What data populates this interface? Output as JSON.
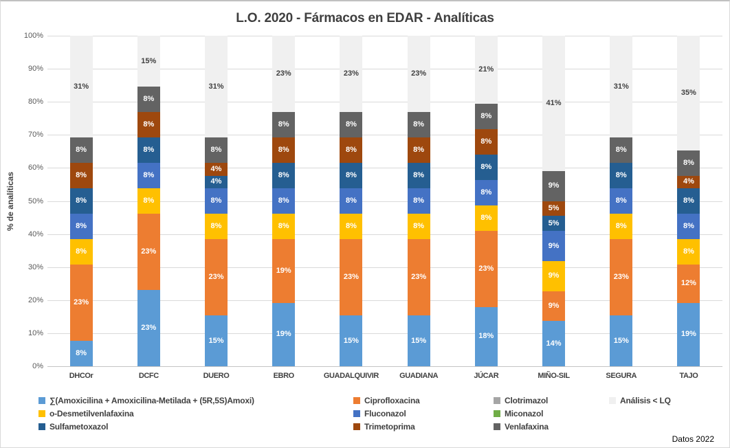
{
  "title": "L.O. 2020 - Fármacos en EDAR - Analíticas",
  "footer": "Datos 2022",
  "y_axis": {
    "label": "% de analíticas",
    "ticks": [
      "100%",
      "90%",
      "80%",
      "70%",
      "60%",
      "50%",
      "40%",
      "30%",
      "20%",
      "10%",
      "0%"
    ]
  },
  "chart_data": {
    "type": "bar",
    "stacked": true,
    "title": "L.O. 2020 - Fármacos en EDAR - Analíticas",
    "xlabel": "",
    "ylabel": "% de analíticas",
    "ylim": [
      0,
      100
    ],
    "grid": true,
    "legend_position": "bottom",
    "categories": [
      "DHCOr",
      "DCFC",
      "DUERO",
      "EBRO",
      "GUADALQUIVIR",
      "GUADIANA",
      "JÚCAR",
      "MIÑO-SIL",
      "SEGURA",
      "TAJO"
    ],
    "series": [
      {
        "name": "∑(Amoxicilina + Amoxicilina-Metilada + (5R,5S)Amoxi)",
        "color": "#5B9BD5",
        "label_color": "#ffffff",
        "values": [
          7.69,
          23.08,
          15.38,
          19.23,
          15.38,
          15.38,
          17.95,
          13.64,
          15.38,
          19.23
        ],
        "data_labels": [
          "8%",
          "23%",
          "15%",
          "19%",
          "15%",
          "15%",
          "18%",
          "14%",
          "15%",
          "19%"
        ]
      },
      {
        "name": "Ciprofloxacina",
        "color": "#ED7D31",
        "label_color": "#ffffff",
        "values": [
          23.08,
          23.08,
          23.08,
          19.23,
          23.08,
          23.08,
          23.08,
          9.09,
          23.08,
          11.54
        ],
        "data_labels": [
          "23%",
          "23%",
          "23%",
          "19%",
          "23%",
          "23%",
          "23%",
          "9%",
          "23%",
          "12%"
        ]
      },
      {
        "name": "Clotrimazol",
        "color": "#A5A5A5",
        "label_color": "#ffffff",
        "values": [
          0,
          0,
          0,
          0,
          0,
          0,
          0,
          0,
          0,
          0
        ],
        "data_labels": [
          "",
          "",
          "",
          "",
          "",
          "",
          "",
          "",
          "",
          ""
        ]
      },
      {
        "name": "o-Desmetilvenlafaxina",
        "color": "#FFC000",
        "label_color": "#ffffff",
        "values": [
          7.69,
          7.69,
          7.69,
          7.69,
          7.69,
          7.69,
          7.69,
          9.09,
          7.69,
          7.69
        ],
        "data_labels": [
          "8%",
          "8%",
          "8%",
          "8%",
          "8%",
          "8%",
          "8%",
          "9%",
          "8%",
          "8%"
        ]
      },
      {
        "name": "Fluconazol",
        "color": "#4472C4",
        "label_color": "#ffffff",
        "values": [
          7.69,
          7.69,
          7.69,
          7.69,
          7.69,
          7.69,
          7.69,
          9.09,
          7.69,
          7.69
        ],
        "data_labels": [
          "8%",
          "8%",
          "8%",
          "8%",
          "8%",
          "8%",
          "8%",
          "9%",
          "8%",
          "8%"
        ]
      },
      {
        "name": "Miconazol",
        "color": "#70AD47",
        "label_color": "#ffffff",
        "values": [
          0,
          0,
          0,
          0,
          0,
          0,
          0,
          0,
          0,
          0
        ],
        "data_labels": [
          "",
          "",
          "",
          "",
          "",
          "",
          "",
          "",
          "",
          ""
        ]
      },
      {
        "name": "Sulfametoxazol",
        "color": "#255E91",
        "label_color": "#ffffff",
        "values": [
          7.69,
          7.69,
          3.85,
          7.69,
          7.69,
          7.69,
          7.69,
          4.55,
          7.69,
          7.69
        ],
        "data_labels": [
          "8%",
          "8%",
          "4%",
          "8%",
          "8%",
          "8%",
          "8%",
          "5%",
          "8%",
          "8%"
        ]
      },
      {
        "name": "Trimetoprima",
        "color": "#9E480E",
        "label_color": "#ffffff",
        "values": [
          7.69,
          7.69,
          3.85,
          7.69,
          7.69,
          7.69,
          7.69,
          4.55,
          0,
          3.85
        ],
        "data_labels": [
          "8%",
          "8%",
          "4%",
          "8%",
          "8%",
          "8%",
          "8%",
          "5%",
          "",
          "4%"
        ]
      },
      {
        "name": "Venlafaxina",
        "color": "#636363",
        "label_color": "#ffffff",
        "values": [
          7.69,
          7.69,
          7.69,
          7.69,
          7.69,
          7.69,
          7.69,
          9.09,
          7.69,
          7.69
        ],
        "data_labels": [
          "8%",
          "8%",
          "8%",
          "8%",
          "8%",
          "8%",
          "8%",
          "9%",
          "8%",
          "8%"
        ]
      },
      {
        "name": "Análisis < LQ",
        "color": "#F0F0F0",
        "label_color": "#404040",
        "values": [
          30.77,
          15.38,
          30.77,
          23.08,
          23.08,
          23.08,
          20.51,
          40.91,
          30.77,
          34.62
        ],
        "data_labels": [
          "31%",
          "15%",
          "31%",
          "23%",
          "23%",
          "23%",
          "21%",
          "41%",
          "31%",
          "35%"
        ]
      }
    ]
  },
  "legend": {
    "rows": [
      [
        {
          "label": "∑(Amoxicilina + Amoxicilina-Metilada + (5R,5S)Amoxi)",
          "color": "#5B9BD5"
        },
        {
          "label": "Ciprofloxacina",
          "color": "#ED7D31"
        },
        {
          "label": "Clotrimazol",
          "color": "#A5A5A5"
        },
        {
          "label": "Análisis < LQ",
          "color": "#F0F0F0"
        }
      ],
      [
        {
          "label": "o-Desmetilvenlafaxina",
          "color": "#FFC000"
        },
        {
          "label": "Fluconazol",
          "color": "#4472C4"
        },
        {
          "label": "Miconazol",
          "color": "#70AD47"
        }
      ],
      [
        {
          "label": "Sulfametoxazol",
          "color": "#255E91"
        },
        {
          "label": "Trimetoprima",
          "color": "#9E480E"
        },
        {
          "label": "Venlafaxina",
          "color": "#636363"
        }
      ]
    ]
  }
}
